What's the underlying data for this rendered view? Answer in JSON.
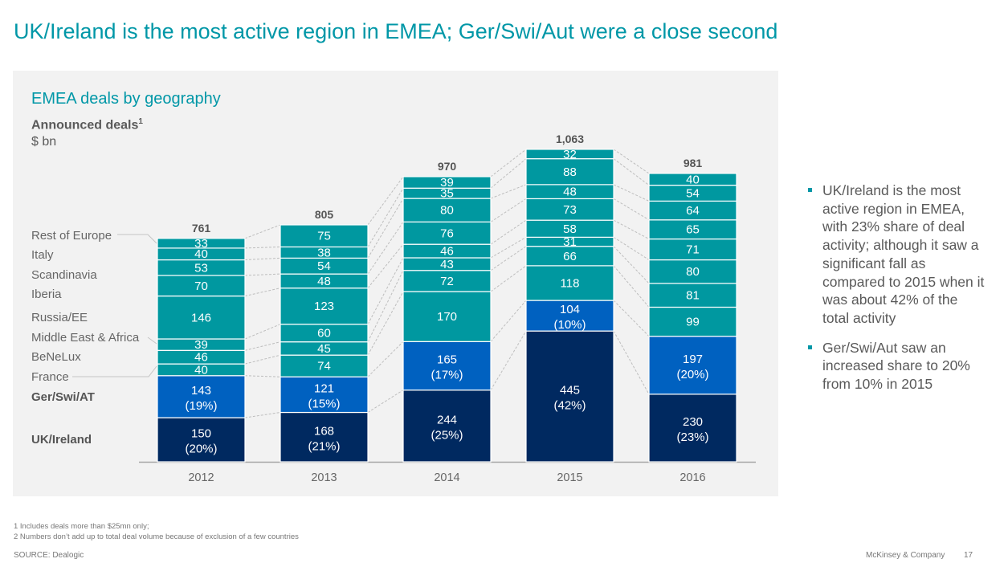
{
  "page": {
    "title": "UK/Ireland is the most active region in EMEA; Ger/Swi/Aut were a close second",
    "bullets": [
      "UK/Ireland is the most active region in EMEA, with 23% share of deal activity; although it saw a significant fall as compared to 2015 when it was about 42% of the total activity",
      "Ger/Swi/Aut saw an increased share to 20% from 10% in 2015"
    ],
    "footnotes": [
      "1 Includes deals more than $25mn only;",
      "2 Numbers don’t add up to total deal volume because of exclusion of a few countries"
    ],
    "source": "SOURCE: Dealogic",
    "company": "McKinsey & Company",
    "page_number": "17"
  },
  "colors": {
    "accent": "#0097a7",
    "teal_segment": "#0098a0",
    "blue_segment": "#0061c0",
    "navy_segment": "#002960",
    "panel_bg": "#f2f2f2"
  },
  "chart_data": {
    "type": "bar",
    "stacked": true,
    "title": "EMEA deals by geography",
    "ylabel": "Announced deals",
    "ylabel_superscript": "1",
    "unit": "$ bn",
    "xlabel": "",
    "categories": [
      "2012",
      "2013",
      "2014",
      "2015",
      "2016"
    ],
    "totals": [
      "761",
      "805",
      "970",
      "1,063",
      "981"
    ],
    "total_values": [
      761,
      805,
      970,
      1063,
      981
    ],
    "ylim": [
      0,
      1063
    ],
    "grid": false,
    "legend_placement": "left",
    "series": [
      {
        "name": "UK/Ireland",
        "bold": true,
        "color": "navy",
        "values": [
          150,
          168,
          244,
          445,
          230
        ],
        "shares": [
          "(20%)",
          "(21%)",
          "(25%)",
          "(42%)",
          "(23%)"
        ]
      },
      {
        "name": "Ger/Swi/AT",
        "bold": true,
        "color": "blue",
        "values": [
          143,
          121,
          165,
          104,
          197
        ],
        "shares": [
          "(19%)",
          "(15%)",
          "(17%)",
          "(10%)",
          "(20%)"
        ]
      },
      {
        "name": "France",
        "color": "teal",
        "values": [
          40,
          74,
          170,
          118,
          99
        ]
      },
      {
        "name": "BeNeLux",
        "color": "teal",
        "values": [
          46,
          45,
          72,
          66,
          81
        ]
      },
      {
        "name": "Middle East & Africa",
        "color": "teal",
        "values": [
          39,
          60,
          43,
          31,
          80
        ]
      },
      {
        "name": "Russia/EE",
        "color": "teal",
        "values": [
          146,
          123,
          46,
          58,
          71
        ]
      },
      {
        "name": "Iberia",
        "color": "teal",
        "values": [
          70,
          48,
          76,
          73,
          65
        ]
      },
      {
        "name": "Scandinavia",
        "color": "teal",
        "values": [
          53,
          54,
          80,
          48,
          64
        ]
      },
      {
        "name": "Italy",
        "color": "teal",
        "values": [
          40,
          38,
          35,
          88,
          54
        ]
      },
      {
        "name": "Rest of Europe",
        "color": "teal",
        "values": [
          33,
          75,
          39,
          32,
          40
        ]
      }
    ]
  }
}
